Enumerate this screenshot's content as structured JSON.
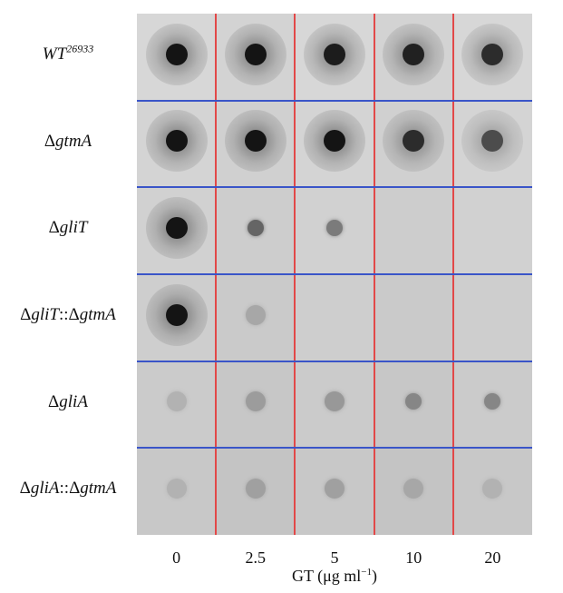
{
  "rows": [
    {
      "name": "WT",
      "superscript": "26933",
      "prefix": ""
    },
    {
      "name": "gtmA",
      "prefix": "Δ"
    },
    {
      "name": "gliT",
      "prefix": "Δ"
    },
    {
      "name": "gliT",
      "prefix": "Δ",
      "sep": "::",
      "name2": "gtmA",
      "prefix2": "Δ"
    },
    {
      "name": "gliA",
      "prefix": "Δ"
    },
    {
      "name": "gliA",
      "prefix": "Δ",
      "sep": "::",
      "name2": "gtmA",
      "prefix2": "Δ"
    }
  ],
  "concentrations": [
    "0",
    "2.5",
    "5",
    "10",
    "20"
  ],
  "x_axis": {
    "label": "GT (μg ml",
    "label_sup": "−1",
    "label_close": ")"
  },
  "spot_intensity": [
    [
      1.0,
      1.0,
      0.95,
      0.92,
      0.85
    ],
    [
      1.0,
      1.0,
      1.0,
      0.85,
      0.65
    ],
    [
      1.0,
      0.45,
      0.35,
      0.0,
      0.0
    ],
    [
      1.0,
      0.15,
      0.0,
      0.0,
      0.0
    ],
    [
      0.1,
      0.2,
      0.22,
      0.3,
      0.3
    ],
    [
      0.1,
      0.18,
      0.18,
      0.15,
      0.1
    ]
  ],
  "colors": {
    "row_divider": "#3a55c8",
    "column_divider": "#e24848",
    "background": "#d6d6d6"
  }
}
